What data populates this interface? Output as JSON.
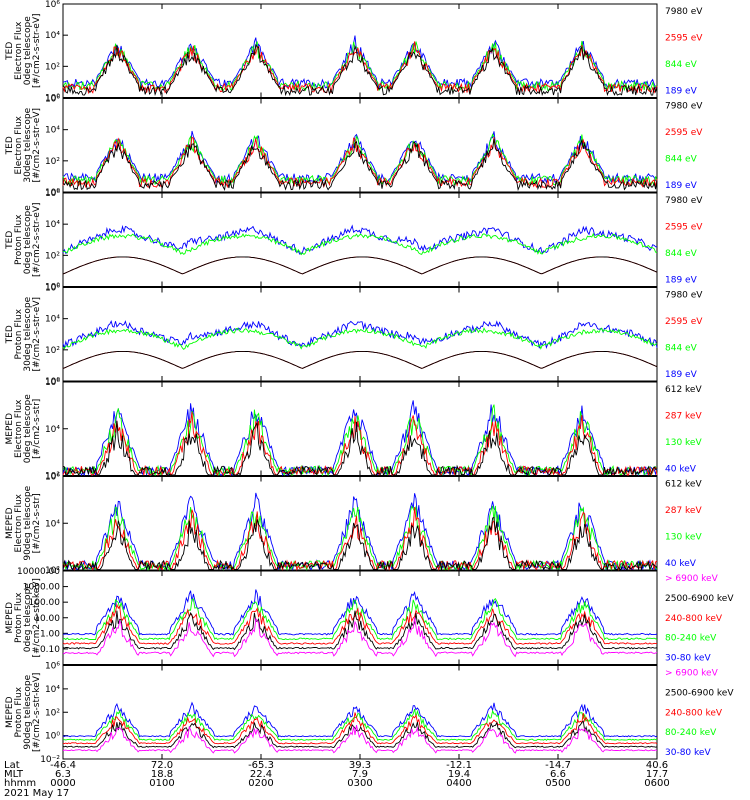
{
  "footer": {
    "rows": [
      {
        "label": "Lat",
        "values": [
          "-46.4",
          "72.0",
          "-65.3",
          "39.3",
          "-12.1",
          "-14.7",
          "40.6"
        ]
      },
      {
        "label": "MLT",
        "values": [
          "6.3",
          "18.8",
          "22.4",
          "7.9",
          "19.4",
          "6.6",
          "17.7"
        ]
      },
      {
        "label": "hhmm",
        "values": [
          "0000",
          "0100",
          "0200",
          "0300",
          "0400",
          "0500",
          "0600"
        ]
      }
    ],
    "date": "2021 May 17"
  },
  "colors": {
    "black": "#000000",
    "red": "#ff0000",
    "green": "#00ff00",
    "blue": "#0000ff",
    "magenta": "#ff00ff"
  },
  "chart_data": [
    {
      "type": "line",
      "name": "panel-ted-electron-0deg",
      "ylabel_lines": [
        "TED",
        "Electron Flux",
        "0deg telescope",
        "[#/cm2-s-str-eV]"
      ],
      "yscale": "log",
      "ylim": [
        1,
        1000000
      ],
      "yticks": [
        "10⁰",
        "10²",
        "10⁴",
        "10⁶"
      ],
      "xlim": [
        0,
        6
      ],
      "legend": [
        {
          "label": "7980 eV",
          "color": "black"
        },
        {
          "label": "2595 eV",
          "color": "red"
        },
        {
          "label": "844 eV",
          "color": "green"
        },
        {
          "label": "189 eV",
          "color": "blue"
        }
      ]
    },
    {
      "type": "line",
      "name": "panel-ted-electron-30deg",
      "ylabel_lines": [
        "TED",
        "Electron Flux",
        "30deg telescope",
        "[#/cm2-s-str-eV]"
      ],
      "yscale": "log",
      "ylim": [
        1,
        1000000
      ],
      "yticks": [
        "10⁰",
        "10²",
        "10⁴",
        "10⁶"
      ],
      "xlim": [
        0,
        6
      ],
      "legend": [
        {
          "label": "7980 eV",
          "color": "black"
        },
        {
          "label": "2595 eV",
          "color": "red"
        },
        {
          "label": "844 eV",
          "color": "green"
        },
        {
          "label": "189 eV",
          "color": "blue"
        }
      ]
    },
    {
      "type": "line",
      "name": "panel-ted-proton-0deg",
      "ylabel_lines": [
        "TED",
        "Proton Flux",
        "0deg telescope",
        "[#/cm2-s-str-eV]"
      ],
      "yscale": "log",
      "ylim": [
        1,
        1000000
      ],
      "yticks": [
        "10⁰",
        "10²",
        "10⁴",
        "10⁶"
      ],
      "xlim": [
        0,
        6
      ],
      "legend": [
        {
          "label": "7980 eV",
          "color": "black"
        },
        {
          "label": "2595 eV",
          "color": "red"
        },
        {
          "label": "844 eV",
          "color": "green"
        },
        {
          "label": "189 eV",
          "color": "blue"
        }
      ]
    },
    {
      "type": "line",
      "name": "panel-ted-proton-30deg",
      "ylabel_lines": [
        "TED",
        "Proton Flux",
        "30deg telescope",
        "[#/cm2-s-str-eV]"
      ],
      "yscale": "log",
      "ylim": [
        1,
        1000000
      ],
      "yticks": [
        "10⁰",
        "10²",
        "10⁴",
        "10⁶"
      ],
      "xlim": [
        0,
        6
      ],
      "legend": [
        {
          "label": "7980 eV",
          "color": "black"
        },
        {
          "label": "2595 eV",
          "color": "red"
        },
        {
          "label": "844 eV",
          "color": "green"
        },
        {
          "label": "189 eV",
          "color": "blue"
        }
      ]
    },
    {
      "type": "line",
      "name": "panel-meped-electron-0deg",
      "ylabel_lines": [
        "MEPED",
        "Electron Flux",
        "0deg telescope",
        "[#/cm2-s-str]"
      ],
      "yscale": "log",
      "ylim": [
        100,
        1000000
      ],
      "yticks": [
        "10²",
        "10⁴",
        "10⁶"
      ],
      "xlim": [
        0,
        6
      ],
      "legend": [
        {
          "label": "612 keV",
          "color": "black"
        },
        {
          "label": "287 keV",
          "color": "red"
        },
        {
          "label": "130 keV",
          "color": "green"
        },
        {
          "label": "40 keV",
          "color": "blue"
        }
      ]
    },
    {
      "type": "line",
      "name": "panel-meped-electron-90deg",
      "ylabel_lines": [
        "MEPED",
        "Electron Flux",
        "90deg telescope",
        "[#/cm2-s-str]"
      ],
      "yscale": "log",
      "ylim": [
        100,
        1000000
      ],
      "yticks": [
        "10²",
        "10⁴",
        "10⁶"
      ],
      "xlim": [
        0,
        6
      ],
      "legend": [
        {
          "label": "612 keV",
          "color": "black"
        },
        {
          "label": "287 keV",
          "color": "red"
        },
        {
          "label": "130 keV",
          "color": "green"
        },
        {
          "label": "40 keV",
          "color": "blue"
        }
      ]
    },
    {
      "type": "line",
      "name": "panel-meped-proton-0deg",
      "ylabel_lines": [
        "MEPED",
        "Proton Flux",
        "0deg telescope",
        "[#/cm2-s-str-keV]"
      ],
      "yscale": "log",
      "ylim": [
        0.01,
        10000
      ],
      "yticks": [
        "0.10",
        "1.00",
        "10.00",
        "100.00",
        "1000.00",
        "10000.00"
      ],
      "xlim": [
        0,
        6
      ],
      "legend": [
        {
          "label": "> 6900 keV",
          "color": "magenta"
        },
        {
          "label": "2500-6900 keV",
          "color": "black"
        },
        {
          "label": "240-800 keV",
          "color": "red"
        },
        {
          "label": "80-240 keV",
          "color": "green"
        },
        {
          "label": "30-80 keV",
          "color": "blue"
        }
      ]
    },
    {
      "type": "line",
      "name": "panel-meped-proton-90deg",
      "ylabel_lines": [
        "MEPED",
        "Proton Flux",
        "90deg telescope",
        "[#/cm2-s-str-keV]"
      ],
      "yscale": "log",
      "ylim": [
        0.01,
        1000000
      ],
      "yticks": [
        "10⁻²",
        "10⁰",
        "10²",
        "10⁴",
        "10⁶"
      ],
      "xlim": [
        0,
        6
      ],
      "legend": [
        {
          "label": "> 6900 keV",
          "color": "magenta"
        },
        {
          "label": "2500-6900 keV",
          "color": "black"
        },
        {
          "label": "240-800 keV",
          "color": "red"
        },
        {
          "label": "80-240 keV",
          "color": "green"
        },
        {
          "label": "30-80 keV",
          "color": "blue"
        }
      ]
    }
  ]
}
